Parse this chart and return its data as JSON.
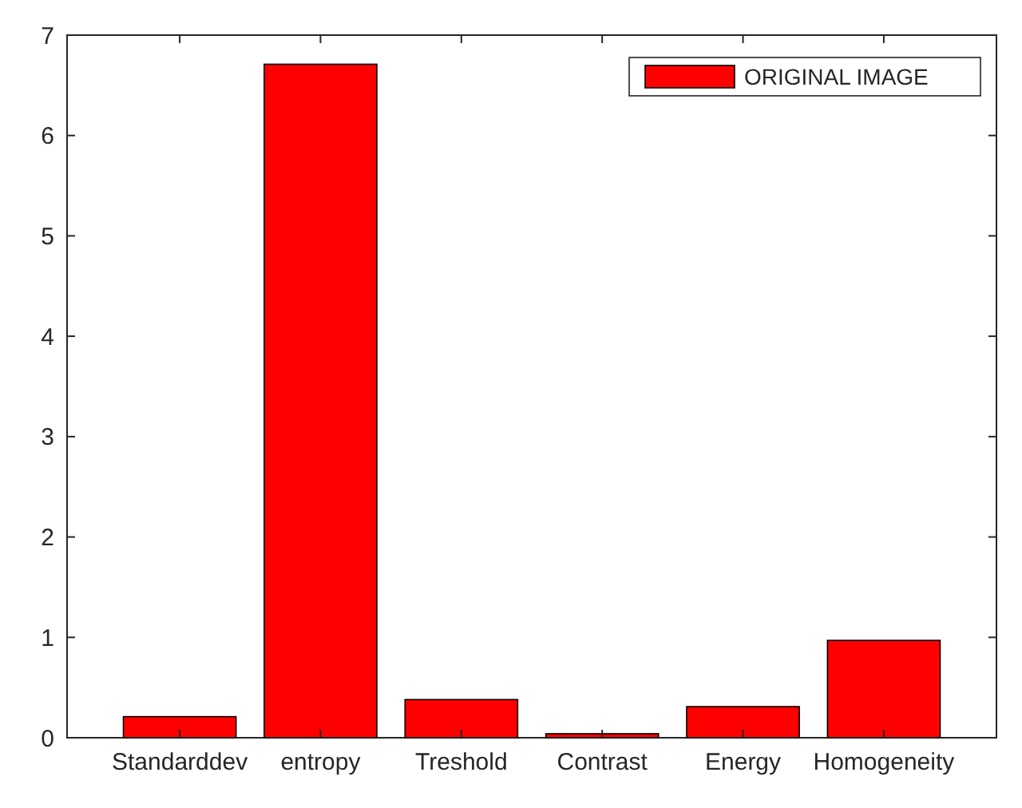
{
  "chart_data": {
    "type": "bar",
    "categories": [
      "Standarddev",
      "entropy",
      "Treshold",
      "Contrast",
      "Energy",
      "Homogeneity"
    ],
    "series": [
      {
        "name": "ORIGINAL IMAGE",
        "color": "#ff0000",
        "values": [
          0.21,
          6.71,
          0.38,
          0.04,
          0.31,
          0.97
        ]
      }
    ],
    "ylim": [
      0,
      7
    ],
    "yticks": [
      0,
      1,
      2,
      3,
      4,
      5,
      6,
      7
    ],
    "grid": false,
    "legend": "top right"
  }
}
